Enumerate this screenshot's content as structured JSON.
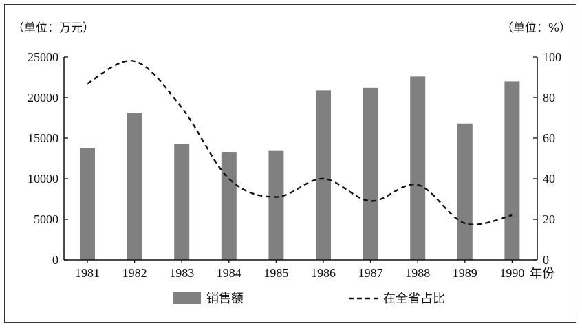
{
  "chart_data": {
    "type": "bar+line",
    "categories": [
      "1981",
      "1982",
      "1983",
      "1984",
      "1985",
      "1986",
      "1987",
      "1988",
      "1989",
      "1990"
    ],
    "x_unit_suffix": "年份",
    "left_unit_label": "（单位：万元）",
    "right_unit_label": "（单位：%）",
    "left_axis": {
      "ylim": [
        0,
        25000
      ],
      "ticks": [
        0,
        5000,
        10000,
        15000,
        20000,
        25000
      ]
    },
    "right_axis": {
      "ylim": [
        0,
        100
      ],
      "ticks": [
        0,
        20,
        40,
        60,
        80,
        100
      ]
    },
    "series": [
      {
        "name": "销售额",
        "type": "bar",
        "axis": "left",
        "color": "#808080",
        "values": [
          13800,
          18100,
          14300,
          13300,
          13500,
          20900,
          21200,
          22600,
          16800,
          22000
        ]
      },
      {
        "name": "在全省占比",
        "type": "line",
        "axis": "right",
        "style": "dashed",
        "color": "#111111",
        "values": [
          87,
          98,
          75,
          40,
          31,
          40,
          29,
          37,
          18,
          22
        ]
      }
    ],
    "legend": {
      "placement": "bottom-center",
      "items": [
        "销售额",
        "在全省占比"
      ]
    },
    "grid": false
  }
}
